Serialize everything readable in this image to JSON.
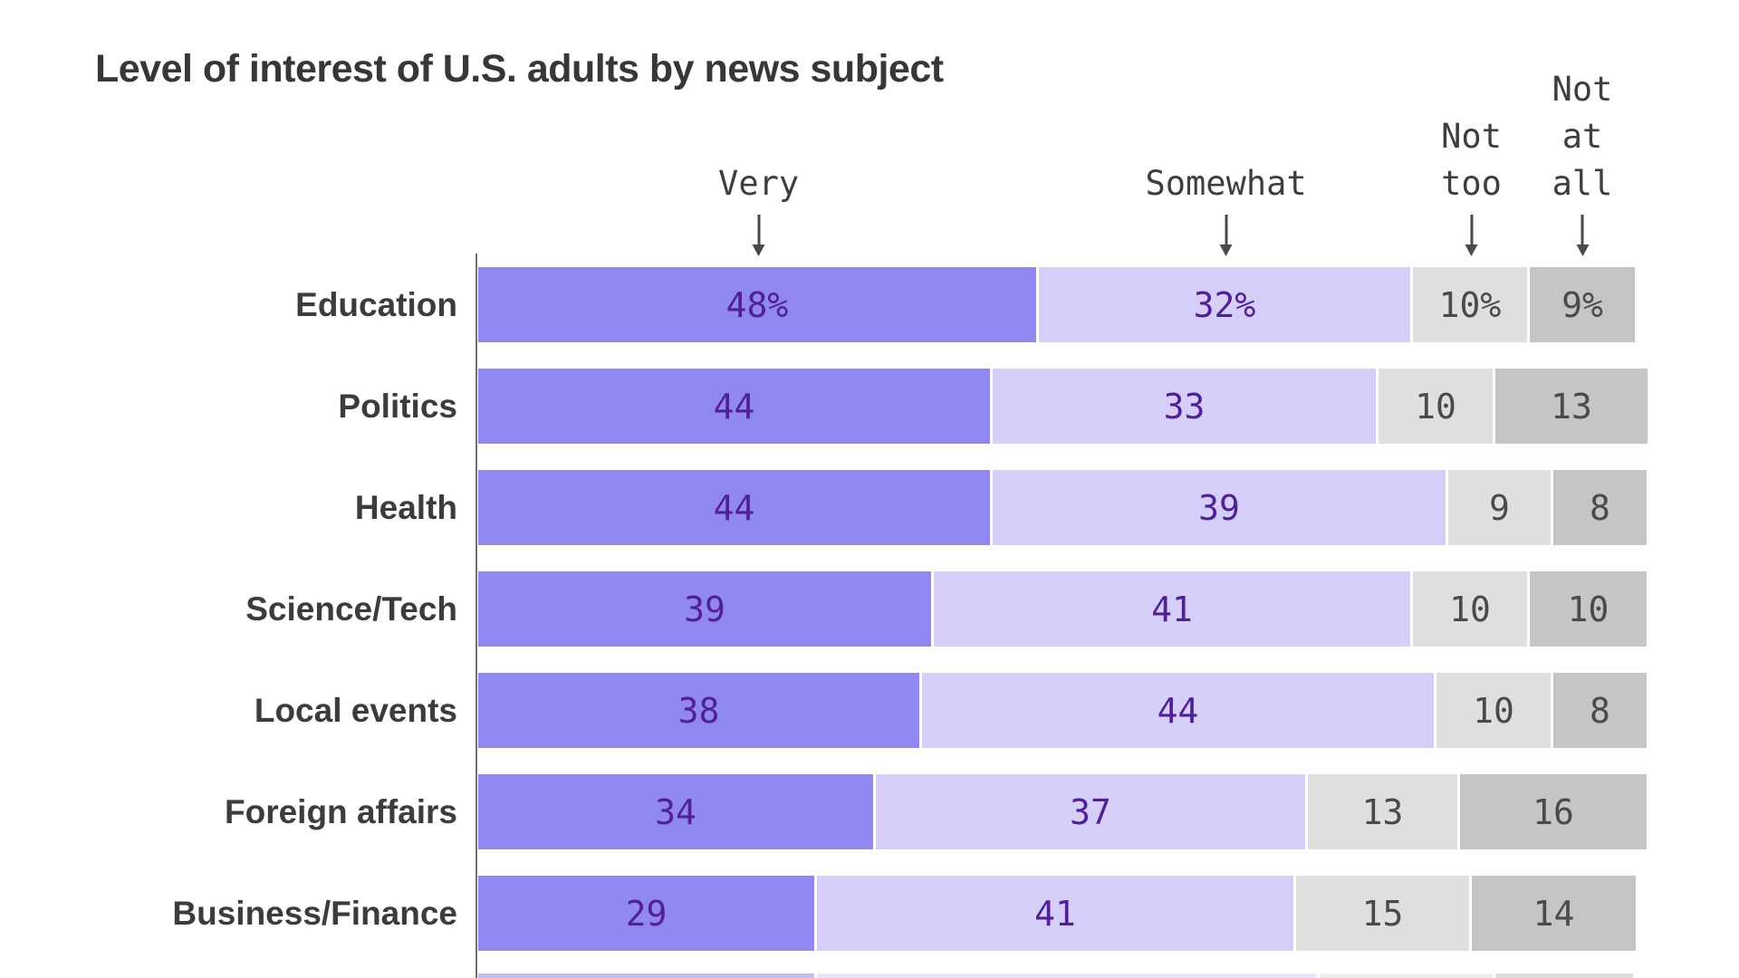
{
  "title": "Level of interest of U.S. adults by news subject",
  "colors": {
    "very": "#9187f0",
    "somewhat": "#d4cef8",
    "not_too": "#dfdfdf",
    "not_at_all": "#c5c4c6",
    "value_text_purple": "#512194",
    "value_text_gray": "#4a4a4a",
    "title_text": "#373737",
    "label_text": "#3c3c3c",
    "header_text": "#3e3e3e",
    "axis": "#707070",
    "arrow": "#4a4a4a"
  },
  "headers": [
    {
      "name": "very",
      "lines": [
        "Very"
      ]
    },
    {
      "name": "somewhat",
      "lines": [
        "Somewhat"
      ]
    },
    {
      "name": "not-too",
      "lines": [
        "Not",
        "too"
      ]
    },
    {
      "name": "not-at-all",
      "lines": [
        "Not",
        "at",
        "all"
      ]
    }
  ],
  "chart_data": {
    "type": "bar",
    "orientation": "horizontal",
    "stacked": true,
    "title": "Level of interest of U.S. adults by news subject",
    "categories": [
      "Education",
      "Politics",
      "Health",
      "Science/Tech",
      "Local events",
      "Foreign affairs",
      "Business/Finance"
    ],
    "series": [
      {
        "name": "Very",
        "values": [
          48,
          44,
          44,
          39,
          38,
          34,
          29
        ]
      },
      {
        "name": "Somewhat",
        "values": [
          32,
          33,
          39,
          41,
          44,
          37,
          41
        ]
      },
      {
        "name": "Not too",
        "values": [
          10,
          10,
          9,
          10,
          10,
          13,
          15
        ]
      },
      {
        "name": "Not at all",
        "values": [
          9,
          13,
          8,
          10,
          8,
          16,
          14
        ]
      }
    ],
    "value_labels": [
      [
        "48%",
        "32%",
        "10%",
        "9%"
      ],
      [
        "44",
        "33",
        "10",
        "13"
      ],
      [
        "44",
        "39",
        "9",
        "8"
      ],
      [
        "39",
        "41",
        "10",
        "10"
      ],
      [
        "38",
        "44",
        "10",
        "8"
      ],
      [
        "34",
        "37",
        "13",
        "16"
      ],
      [
        "29",
        "41",
        "15",
        "14"
      ]
    ],
    "xlim": [
      0,
      100
    ],
    "legend_position": "top-as-column-headers",
    "grid": false,
    "partial_bottom_row_segments": [
      29,
      43,
      15,
      12
    ]
  }
}
